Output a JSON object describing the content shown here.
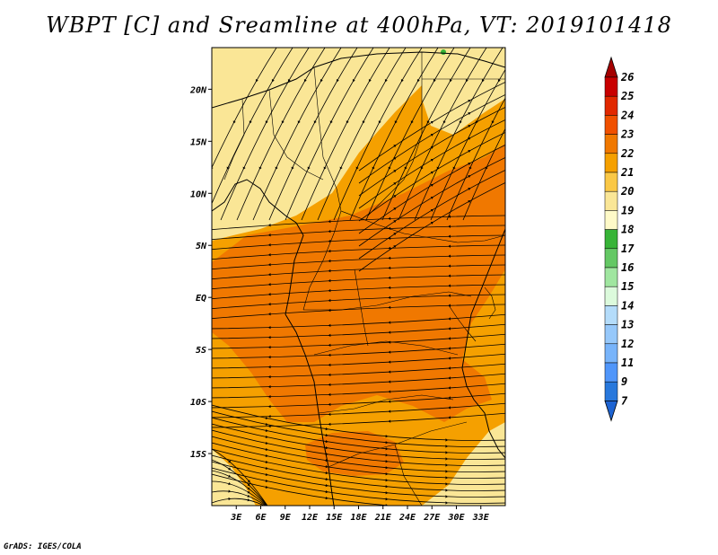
{
  "title": "WBPT [C] and Sreamline at 400hPa, VT: 2019101418",
  "credit": "GrADS: IGES/COLA",
  "map": {
    "lon_range": [
      0,
      36
    ],
    "lat_range": [
      -20,
      24
    ],
    "lon_ticks": [
      3,
      6,
      9,
      12,
      15,
      18,
      21,
      24,
      27,
      30,
      33
    ],
    "lon_labels": [
      "3E",
      "6E",
      "9E",
      "12E",
      "15E",
      "18E",
      "21E",
      "24E",
      "27E",
      "30E",
      "33E"
    ],
    "lat_ticks": [
      20,
      15,
      10,
      5,
      0,
      -5,
      -10,
      -15
    ],
    "lat_labels": [
      "20N",
      "15N",
      "10N",
      "5N",
      "EQ",
      "5S",
      "10S",
      "15S"
    ]
  },
  "colorbar": {
    "levels": [
      "26",
      "25",
      "24",
      "23",
      "22",
      "21",
      "20",
      "19",
      "18",
      "17",
      "16",
      "15",
      "14",
      "13",
      "12",
      "11",
      "9",
      "7"
    ],
    "colors": [
      "#a50000",
      "#c80000",
      "#e12800",
      "#f05000",
      "#f07800",
      "#f5a000",
      "#fac846",
      "#fae696",
      "#fffac8",
      "#37b437",
      "#64c864",
      "#a0e6a0",
      "#dcfadc",
      "#b4dcfa",
      "#96c8fa",
      "#78b4fa",
      "#5096fa",
      "#2878dc",
      "#1e64d2"
    ]
  },
  "colors": {
    "orange_band": "#f07800",
    "light_orange": "#f5a000",
    "pale_yellow": "#fae696"
  }
}
